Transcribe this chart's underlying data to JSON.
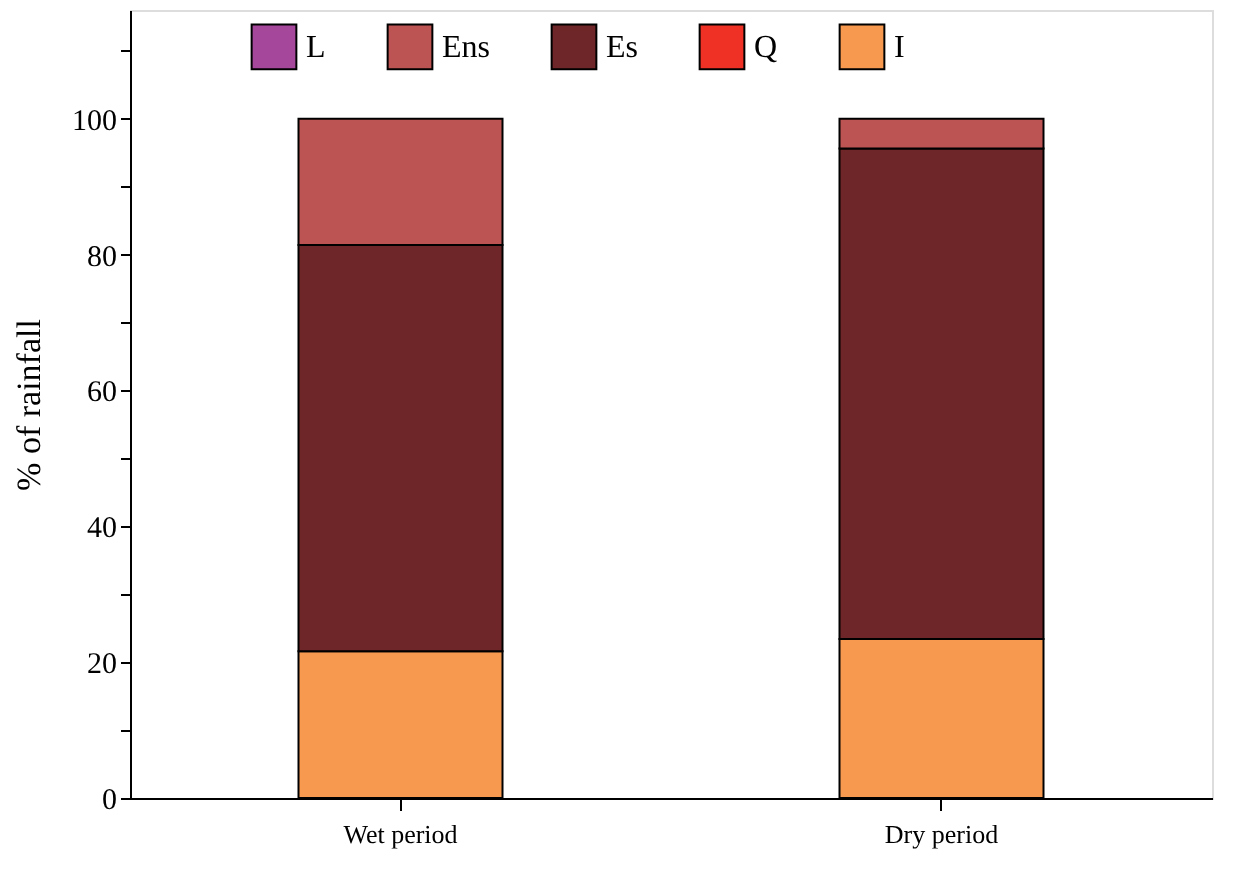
{
  "chart_data": {
    "type": "bar",
    "stacked": true,
    "ylabel": "% of rainfall",
    "categories": [
      "Wet period",
      "Dry period"
    ],
    "series": [
      {
        "name": "I",
        "color": "#f79a50",
        "values": [
          21.6,
          23.4
        ]
      },
      {
        "name": "Q",
        "color": "#ee3124",
        "values": [
          0,
          0
        ]
      },
      {
        "name": "Es",
        "color": "#6e2629",
        "values": [
          59.8,
          72.2
        ]
      },
      {
        "name": "Ens",
        "color": "#bb5452",
        "values": [
          18.6,
          4.4
        ]
      },
      {
        "name": "L",
        "color": "#a5489c",
        "values": [
          0,
          0
        ]
      }
    ],
    "ylim": [
      0,
      116
    ],
    "yticks": [
      0,
      {
        "value": 10,
        "label": null
      },
      20,
      {
        "value": 30,
        "label": null
      },
      40,
      {
        "value": 50,
        "label": null
      },
      60,
      {
        "value": 70,
        "label": null
      },
      80,
      {
        "value": 90,
        "label": null
      },
      100,
      {
        "value": 110,
        "label": null
      }
    ],
    "legend": "top",
    "grid": false
  }
}
